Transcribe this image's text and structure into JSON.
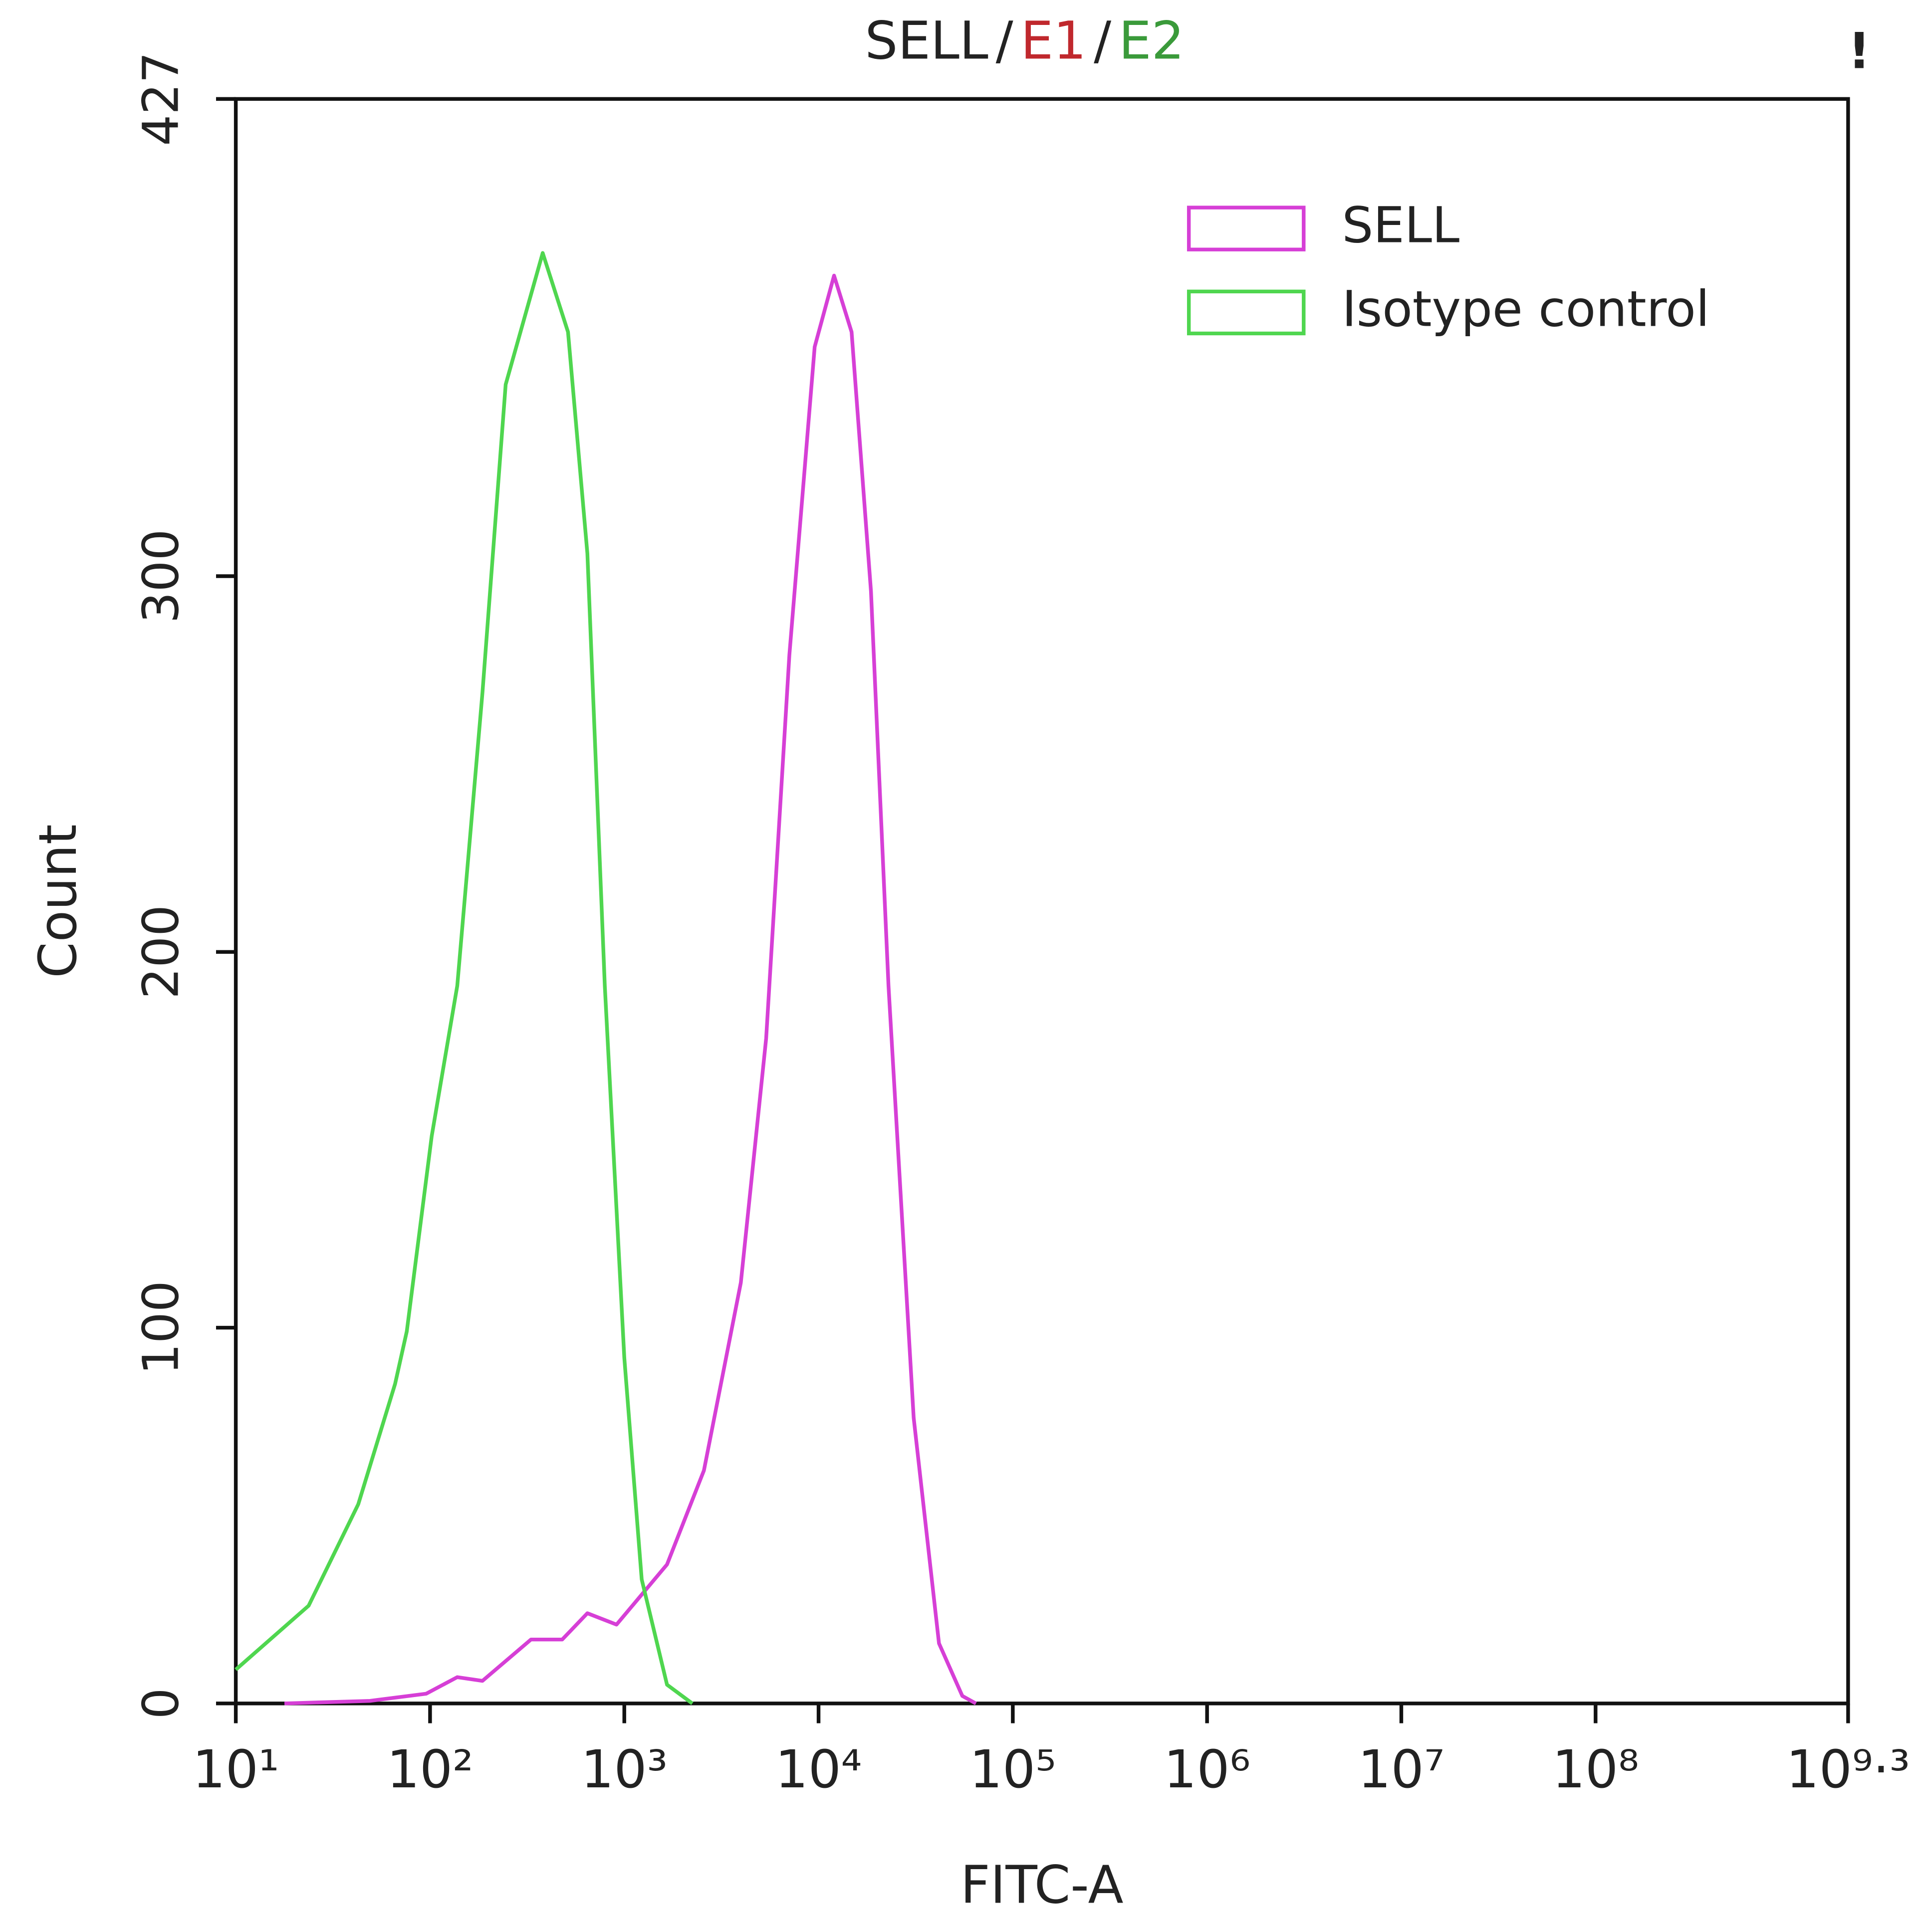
{
  "chart_data": {
    "type": "line",
    "title": [
      "SELL",
      "/",
      "E1",
      "/",
      "E2"
    ],
    "title_colors": [
      "#222222",
      "#222222",
      "#c0282d",
      "#222222",
      "#3a9a3a"
    ],
    "annotation": "!",
    "x_label": "FITC-A",
    "y_label": "Count",
    "x_log": true,
    "xlim": [
      10,
      1995262315
    ],
    "xticks": [
      {
        "value": 10,
        "label": "10¹"
      },
      {
        "value": 100,
        "label": "10²"
      },
      {
        "value": 1000,
        "label": "10³"
      },
      {
        "value": 10000,
        "label": "10⁴"
      },
      {
        "value": 100000,
        "label": "10⁵"
      },
      {
        "value": 1000000,
        "label": "10⁶"
      },
      {
        "value": 10000000,
        "label": "10⁷"
      },
      {
        "value": 100000000,
        "label": "10⁸"
      },
      {
        "value": 1995262315,
        "label": "10⁹·³"
      }
    ],
    "ylim": [
      0,
      427
    ],
    "yticks": [
      0,
      100,
      200,
      300,
      427
    ],
    "legend": "upper right",
    "series": [
      {
        "name": "SELL",
        "color": "#d63fd6",
        "x": [
          17.8,
          49,
          95.5,
          138,
          186,
          331,
          479,
          646,
          912,
          1660,
          2570,
          3981,
          5370,
          7079,
          9550,
          12020,
          14790,
          18620,
          22910,
          30900,
          41690,
          54950,
          64570
        ],
        "values": [
          0,
          0.7,
          2.6,
          7,
          6,
          17,
          17,
          24,
          21,
          37,
          62,
          112,
          177,
          279,
          361,
          380,
          365,
          296,
          191,
          76,
          16,
          2,
          0
        ]
      },
      {
        "name": "Isotype control",
        "color": "#4fd64f",
        "x": [
          10,
          23.7,
          42.7,
          66,
          75.9,
          102,
          138,
          186,
          245,
          380,
          513,
          646,
          794,
          1000,
          1230,
          1660,
          2239
        ],
        "values": [
          9,
          26,
          53,
          85,
          99,
          151,
          191,
          269,
          351,
          386,
          365,
          306,
          191,
          92,
          33,
          5,
          0
        ]
      }
    ]
  }
}
